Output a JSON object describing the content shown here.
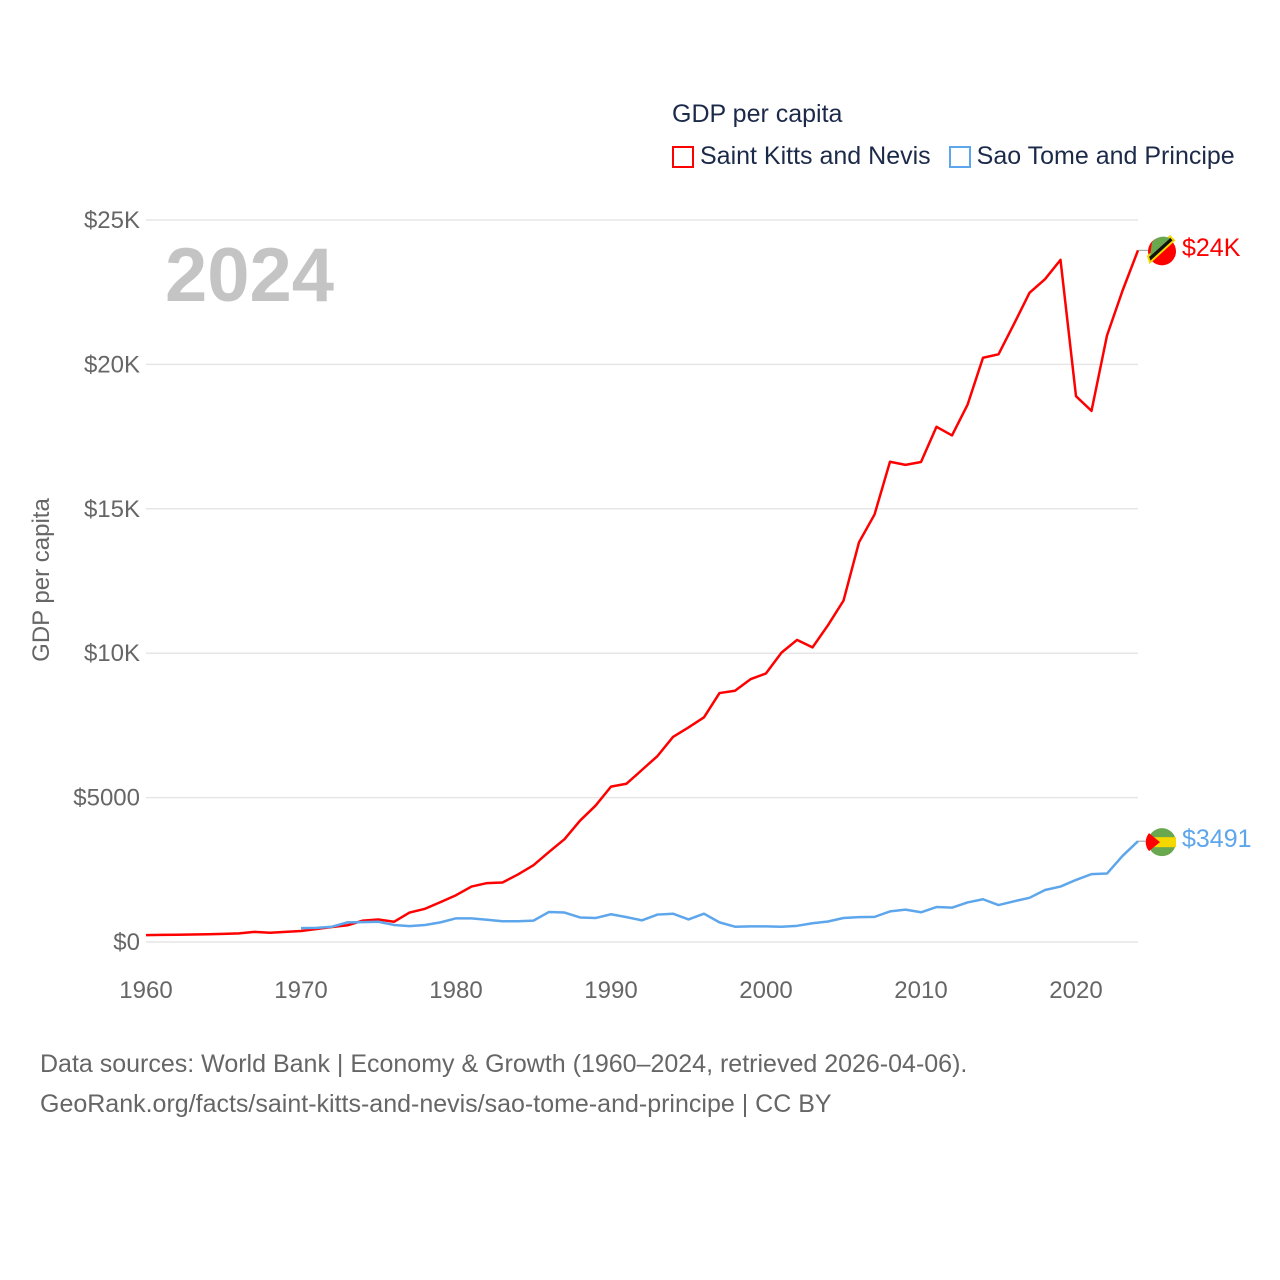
{
  "chart_data": {
    "type": "line",
    "title": "GDP per capita",
    "ylabel": "GDP per capita",
    "xlabel": "",
    "xlim": [
      1960,
      2024
    ],
    "ylim": [
      0,
      25000
    ],
    "x_ticks": [
      "1960",
      "1970",
      "1980",
      "1990",
      "2000",
      "2010",
      "2020"
    ],
    "x_tick_values": [
      1960,
      1970,
      1980,
      1990,
      2000,
      2010,
      2020
    ],
    "y_ticks": [
      "$0",
      "$5000",
      "$10K",
      "$15K",
      "$20K",
      "$25K"
    ],
    "y_tick_values": [
      0,
      5000,
      10000,
      15000,
      20000,
      25000
    ],
    "grid": true,
    "legend_placement": "top-right",
    "year_label": "2024",
    "series": [
      {
        "name": "Saint Kitts and Nevis",
        "color": "#ff0000",
        "start_year": 1960,
        "end_label": "$24K",
        "values": [
          240,
          245,
          250,
          260,
          270,
          280,
          300,
          350,
          320,
          350,
          380,
          450,
          520,
          580,
          740,
          780,
          700,
          1020,
          1150,
          1380,
          1620,
          1920,
          2040,
          2060,
          2340,
          2660,
          3120,
          3560,
          4200,
          4720,
          5380,
          5480,
          5960,
          6440,
          7100,
          7430,
          7780,
          8620,
          8700,
          9100,
          9300,
          10020,
          10460,
          10200,
          10970,
          11820,
          13840,
          14800,
          16630,
          16520,
          16620,
          17840,
          17540,
          18600,
          20230,
          20350,
          21400,
          22480,
          22950,
          23620,
          18900,
          18390,
          21000,
          22550,
          23950
        ]
      },
      {
        "name": "Sao Tome and Principe",
        "color": "#5ea6ec",
        "start_year": 1970,
        "end_label": "$3491",
        "values": [
          480,
          490,
          530,
          680,
          690,
          700,
          590,
          550,
          590,
          680,
          820,
          820,
          770,
          720,
          720,
          740,
          1040,
          1020,
          850,
          830,
          960,
          860,
          750,
          950,
          980,
          780,
          980,
          680,
          530,
          540,
          540,
          530,
          560,
          650,
          710,
          830,
          860,
          870,
          1060,
          1120,
          1030,
          1210,
          1190,
          1370,
          1480,
          1280,
          1410,
          1530,
          1800,
          1920,
          2150,
          2350,
          2370,
          2980,
          3491
        ]
      }
    ]
  },
  "footer": {
    "line1": "Data sources: World Bank | Economy & Growth (1960–2024, retrieved 2026-04-06).",
    "line2": "GeoRank.org/facts/saint-kitts-and-nevis/sao-tome-and-principe | CC BY"
  }
}
